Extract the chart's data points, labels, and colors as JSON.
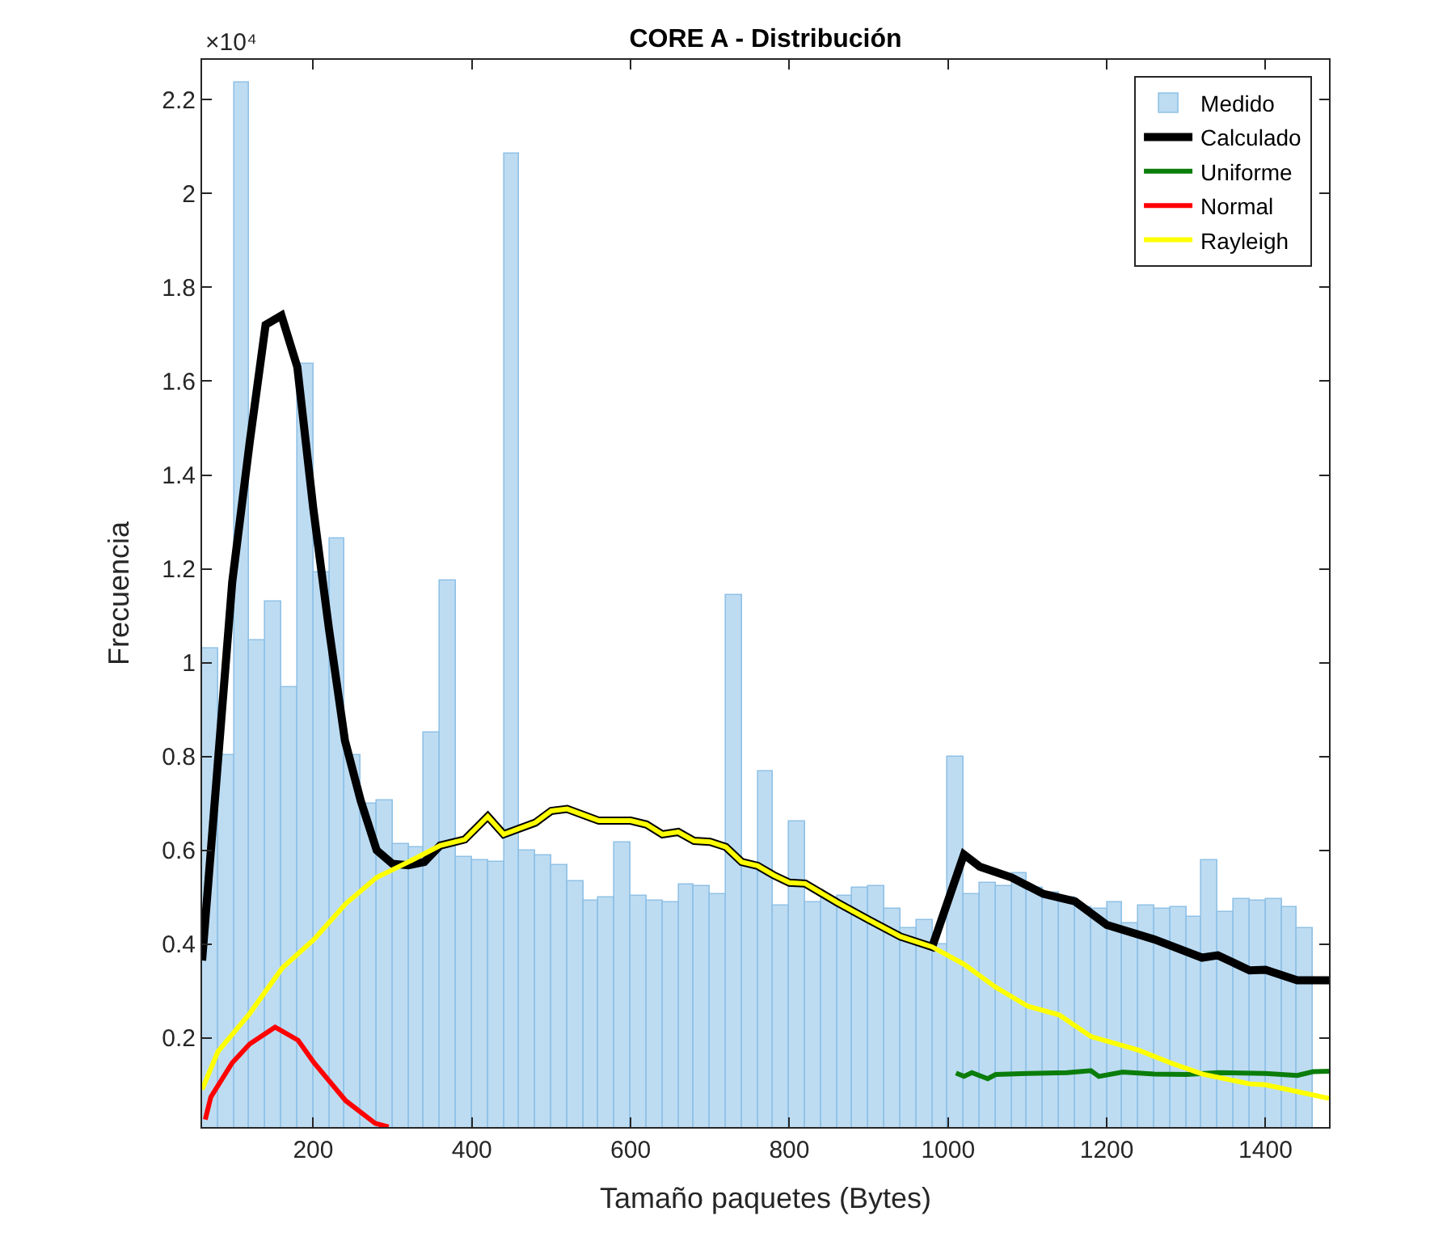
{
  "chart_data": {
    "type": "histogram",
    "title": "CORE A - Distribución",
    "xlabel": "Tamaño paquetes (Bytes)",
    "ylabel": "Frecuencia",
    "annotations": [
      "×10⁴"
    ],
    "bins": [
      60,
      80,
      100,
      120,
      140,
      160,
      180,
      200,
      220,
      240,
      260,
      280,
      300,
      320,
      340,
      360,
      380,
      400,
      420,
      440,
      460,
      480,
      500,
      520,
      540,
      560,
      580,
      600,
      620,
      640,
      660,
      680,
      700,
      720,
      740,
      760,
      780,
      800,
      820,
      840,
      860,
      880,
      900,
      920,
      940,
      960,
      980,
      1000,
      1020,
      1040,
      1060,
      1080,
      1100,
      1120,
      1140,
      1160,
      1180,
      1200,
      1220,
      1240,
      1260,
      1280,
      1300,
      1320,
      1340,
      1360,
      1380,
      1400,
      1420,
      1440,
      1460,
      1480
    ],
    "series": [
      {
        "name": "Medido",
        "color": "#bddcf2",
        "values": [
          1.031,
          0.804,
          2.236,
          1.048,
          1.132,
          0.946,
          1.638,
          1.193,
          1.264,
          0.804,
          0.7,
          0.705,
          0.612,
          0.605,
          0.85,
          1.175,
          0.585,
          0.58,
          0.575,
          2.084,
          0.599,
          0.588,
          0.567,
          0.533,
          0.494,
          0.5,
          0.615,
          0.502,
          0.494,
          0.489,
          0.526,
          0.523,
          0.508,
          1.143,
          0.57,
          0.768,
          0.481,
          0.66,
          0.489,
          0.5,
          0.502,
          0.521,
          0.523,
          0.475,
          0.433,
          0.45,
          0.4,
          0.8,
          0.507,
          0.531,
          0.523,
          0.55,
          0.52,
          0.51,
          0.5,
          0.48,
          0.475,
          0.489,
          0.446,
          0.483,
          0.476,
          0.478,
          0.457,
          0.58,
          0.468,
          0.497,
          0.494,
          0.497,
          0.478,
          0.433,
          null
        ]
      },
      {
        "name": "Calculado",
        "type": "line",
        "color": "#000000",
        "x": [
          60,
          98,
          120,
          140,
          160,
          180,
          200,
          220,
          240,
          260,
          280,
          300,
          320,
          340,
          360,
          391,
          420,
          440,
          480,
          500,
          520,
          560,
          600,
          620,
          640,
          660,
          680,
          700,
          720,
          740,
          760,
          780,
          800,
          820,
          860,
          900,
          940,
          980,
          1020,
          1040,
          1080,
          1120,
          1160,
          1200,
          1260,
          1320,
          1340,
          1380,
          1400,
          1440,
          1480
        ],
        "values": [
          0.365,
          1.172,
          1.47,
          1.72,
          1.74,
          1.63,
          1.33,
          1.07,
          0.834,
          0.705,
          0.6,
          0.571,
          0.568,
          0.575,
          0.61,
          0.623,
          0.672,
          0.634,
          0.659,
          0.684,
          0.688,
          0.663,
          0.663,
          0.655,
          0.634,
          0.639,
          0.62,
          0.618,
          0.607,
          0.575,
          0.567,
          0.547,
          0.531,
          0.529,
          0.489,
          0.452,
          0.416,
          0.394,
          0.591,
          0.565,
          0.542,
          0.507,
          0.491,
          0.441,
          0.41,
          0.371,
          0.376,
          0.344,
          0.345,
          0.323,
          0.323
        ]
      },
      {
        "name": "Uniforme",
        "type": "line",
        "color": "#0b7d0b",
        "x": [
          1010,
          1020,
          1030,
          1050,
          1060,
          1100,
          1150,
          1180,
          1190,
          1220,
          1260,
          1300,
          1340,
          1400,
          1440,
          1460,
          1480
        ],
        "values": [
          0.125,
          0.118,
          0.126,
          0.113,
          0.122,
          0.124,
          0.126,
          0.13,
          0.118,
          0.127,
          0.123,
          0.122,
          0.126,
          0.124,
          0.12,
          0.128,
          0.129
        ]
      },
      {
        "name": "Normal",
        "type": "line",
        "color": "#ff0000",
        "x": [
          64,
          71,
          98,
          120,
          152,
          181,
          201,
          241,
          278,
          295
        ],
        "values": [
          0.026,
          0.074,
          0.147,
          0.187,
          0.223,
          0.195,
          0.147,
          0.066,
          0.018,
          0.01
        ]
      },
      {
        "name": "Rayleigh",
        "type": "line",
        "color": "#ffff00",
        "x": [
          60,
          80,
          120,
          161,
          201,
          241,
          280,
          320,
          360,
          391,
          420,
          440,
          480,
          500,
          520,
          560,
          600,
          620,
          640,
          660,
          680,
          700,
          720,
          740,
          760,
          780,
          800,
          820,
          860,
          900,
          940,
          980,
          1020,
          1060,
          1100,
          1140,
          1180,
          1240,
          1280,
          1320,
          1380,
          1400,
          1480
        ],
        "values": [
          0.09,
          0.171,
          0.252,
          0.349,
          0.41,
          0.486,
          0.542,
          0.575,
          0.61,
          0.623,
          0.672,
          0.634,
          0.659,
          0.684,
          0.688,
          0.663,
          0.663,
          0.655,
          0.634,
          0.639,
          0.62,
          0.618,
          0.607,
          0.575,
          0.567,
          0.547,
          0.531,
          0.529,
          0.489,
          0.452,
          0.416,
          0.394,
          0.357,
          0.308,
          0.268,
          0.249,
          0.203,
          0.174,
          0.147,
          0.123,
          0.102,
          0.1,
          0.071
        ]
      }
    ],
    "xlim": [
      60,
      1480
    ],
    "xticks": [
      200,
      400,
      600,
      800,
      1000,
      1200,
      1400
    ],
    "ylim": [
      0.01,
      2.285
    ],
    "yticks": [
      0.2,
      0.4,
      0.6,
      0.8,
      1,
      1.2,
      1.4,
      1.6,
      1.8,
      2,
      2.2
    ],
    "legend": "top right"
  }
}
